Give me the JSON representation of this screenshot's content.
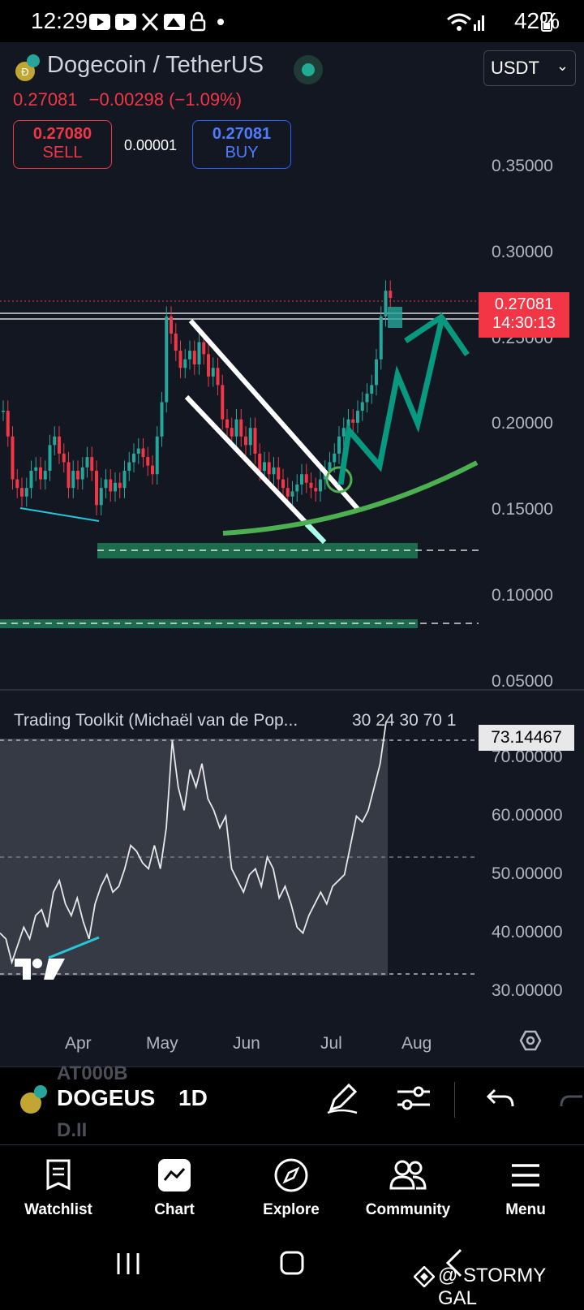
{
  "status_bar": {
    "time": "12:29",
    "battery": "42%"
  },
  "header": {
    "pair_title": "Dogecoin / TetherUS",
    "last_price": "0.27081",
    "change": "−0.00298 (−1.09%)",
    "sell_price": "0.27080",
    "sell_label": "SELL",
    "spread": "0.00001",
    "buy_price": "0.27081",
    "buy_label": "BUY",
    "currency": "USDT"
  },
  "price_axis": {
    "ticks": [
      "0.35000",
      "0.30000",
      "0.25000",
      "0.20000",
      "0.15000",
      "0.10000",
      "0.05000"
    ],
    "last_price_tag": "0.27081",
    "countdown": "14:30:13"
  },
  "indicator": {
    "name": "Trading Toolkit (Michaël van de Pop...",
    "params": "30 24 30 70 1",
    "value_tag": "73.14467",
    "ticks": [
      "70.00000",
      "60.00000",
      "50.00000",
      "40.00000",
      "30.00000"
    ]
  },
  "time_axis": {
    "ticks": [
      "Apr",
      "May",
      "Jun",
      "Jul",
      "Aug"
    ]
  },
  "toolbar": {
    "symbol": "DOGEUS",
    "interval": "1D",
    "ghost_top": "AT000B",
    "ghost_bottom": "D.II"
  },
  "bottom_nav": [
    "Watchlist",
    "Chart",
    "Explore",
    "Community",
    "Menu"
  ],
  "watermark": "@ STORMY GAL",
  "colors": {
    "up": "#26a69a",
    "down": "#f23645",
    "accent_green": "#4caf50",
    "buy_blue": "#2962ff",
    "background": "#131722"
  },
  "chart_data": {
    "type": "candlestick",
    "symbol": "DOGEUSDT",
    "interval": "1D",
    "y_range": [
      0.05,
      0.37
    ],
    "x_ticks": [
      "Apr",
      "May",
      "Jun",
      "Jul",
      "Aug"
    ],
    "last_price": 0.27081,
    "approx_closes": [
      0.205,
      0.19,
      0.165,
      0.16,
      0.155,
      0.16,
      0.17,
      0.172,
      0.165,
      0.17,
      0.185,
      0.19,
      0.18,
      0.175,
      0.16,
      0.17,
      0.165,
      0.172,
      0.178,
      0.17,
      0.15,
      0.16,
      0.165,
      0.158,
      0.163,
      0.16,
      0.17,
      0.175,
      0.18,
      0.183,
      0.178,
      0.173,
      0.168,
      0.19,
      0.21,
      0.26,
      0.25,
      0.24,
      0.23,
      0.235,
      0.24,
      0.232,
      0.245,
      0.238,
      0.225,
      0.23,
      0.22,
      0.2,
      0.195,
      0.19,
      0.2,
      0.19,
      0.185,
      0.195,
      0.18,
      0.17,
      0.175,
      0.168,
      0.172,
      0.165,
      0.16,
      0.155,
      0.158,
      0.162,
      0.168,
      0.163,
      0.16,
      0.158,
      0.165,
      0.17,
      0.175,
      0.18,
      0.19,
      0.195,
      0.2,
      0.198,
      0.205,
      0.21,
      0.215,
      0.22,
      0.235,
      0.26,
      0.275,
      0.27081
    ],
    "oscillator": {
      "name": "Trading Toolkit",
      "y_range": [
        25,
        75
      ],
      "levels": [
        70,
        50,
        30
      ],
      "last_value": 73.14467,
      "values": [
        37,
        36,
        32,
        35,
        38,
        36,
        40,
        41,
        38,
        44,
        46,
        42,
        40,
        43,
        39,
        36,
        42,
        45,
        47,
        44,
        45,
        48,
        52,
        51,
        49,
        48,
        52,
        48,
        55,
        70,
        62,
        58,
        65,
        62,
        66,
        60,
        58,
        55,
        57,
        48,
        46,
        44,
        47,
        48,
        45,
        50,
        48,
        43,
        45,
        42,
        38,
        37,
        40,
        42,
        44,
        42,
        45,
        46,
        47,
        52,
        57,
        56,
        58,
        62,
        66,
        73.14467
      ]
    }
  }
}
